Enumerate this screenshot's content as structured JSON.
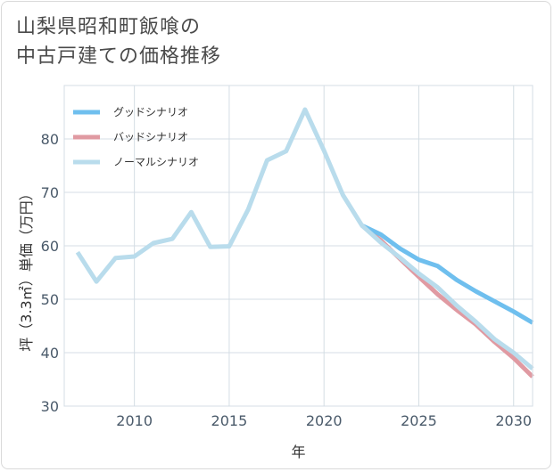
{
  "title_lines": [
    "山梨県昭和町飯喰の",
    "中古戸建ての価格推移"
  ],
  "chart_data": {
    "type": "line",
    "title": "山梨県昭和町飯喰の中古戸建ての価格推移",
    "xlabel": "年",
    "ylabel": "坪（3.3㎡）単価（万円）",
    "xlim": [
      2006.3,
      2031.0
    ],
    "ylim": [
      30,
      90
    ],
    "xticks": [
      2010,
      2015,
      2020,
      2025,
      2030
    ],
    "yticks": [
      30,
      40,
      50,
      60,
      70,
      80
    ],
    "grid": true,
    "legend_position": "top-left",
    "series": [
      {
        "name": "グッドシナリオ",
        "color": "#6fbfee",
        "x": [
          2022,
          2023,
          2024,
          2025,
          2026,
          2027,
          2028,
          2029,
          2030,
          2031
        ],
        "y": [
          63.8,
          62.1,
          59.5,
          57.4,
          56.2,
          53.6,
          51.5,
          49.6,
          47.7,
          45.6
        ]
      },
      {
        "name": "バッドシナリオ",
        "color": "#e09aa2",
        "x": [
          2022,
          2023,
          2024,
          2025,
          2026,
          2027,
          2028,
          2029,
          2030,
          2031
        ],
        "y": [
          63.8,
          61.0,
          57.6,
          54.2,
          50.9,
          48.0,
          45.3,
          42.0,
          39.0,
          35.5
        ]
      },
      {
        "name": "ノーマルシナリオ",
        "color": "#b9dcec",
        "x": [
          2007,
          2008,
          2009,
          2010,
          2011,
          2012,
          2013,
          2014,
          2015,
          2016,
          2017,
          2018,
          2019,
          2020,
          2021,
          2022,
          2023,
          2024,
          2025,
          2026,
          2027,
          2028,
          2029,
          2030,
          2031
        ],
        "y": [
          58.8,
          53.3,
          57.7,
          58.0,
          60.5,
          61.3,
          66.3,
          59.8,
          59.9,
          66.8,
          76.0,
          77.7,
          85.5,
          77.8,
          69.5,
          63.8,
          60.6,
          57.8,
          54.8,
          52.2,
          48.8,
          45.8,
          42.5,
          40.0,
          37.0
        ]
      }
    ]
  }
}
